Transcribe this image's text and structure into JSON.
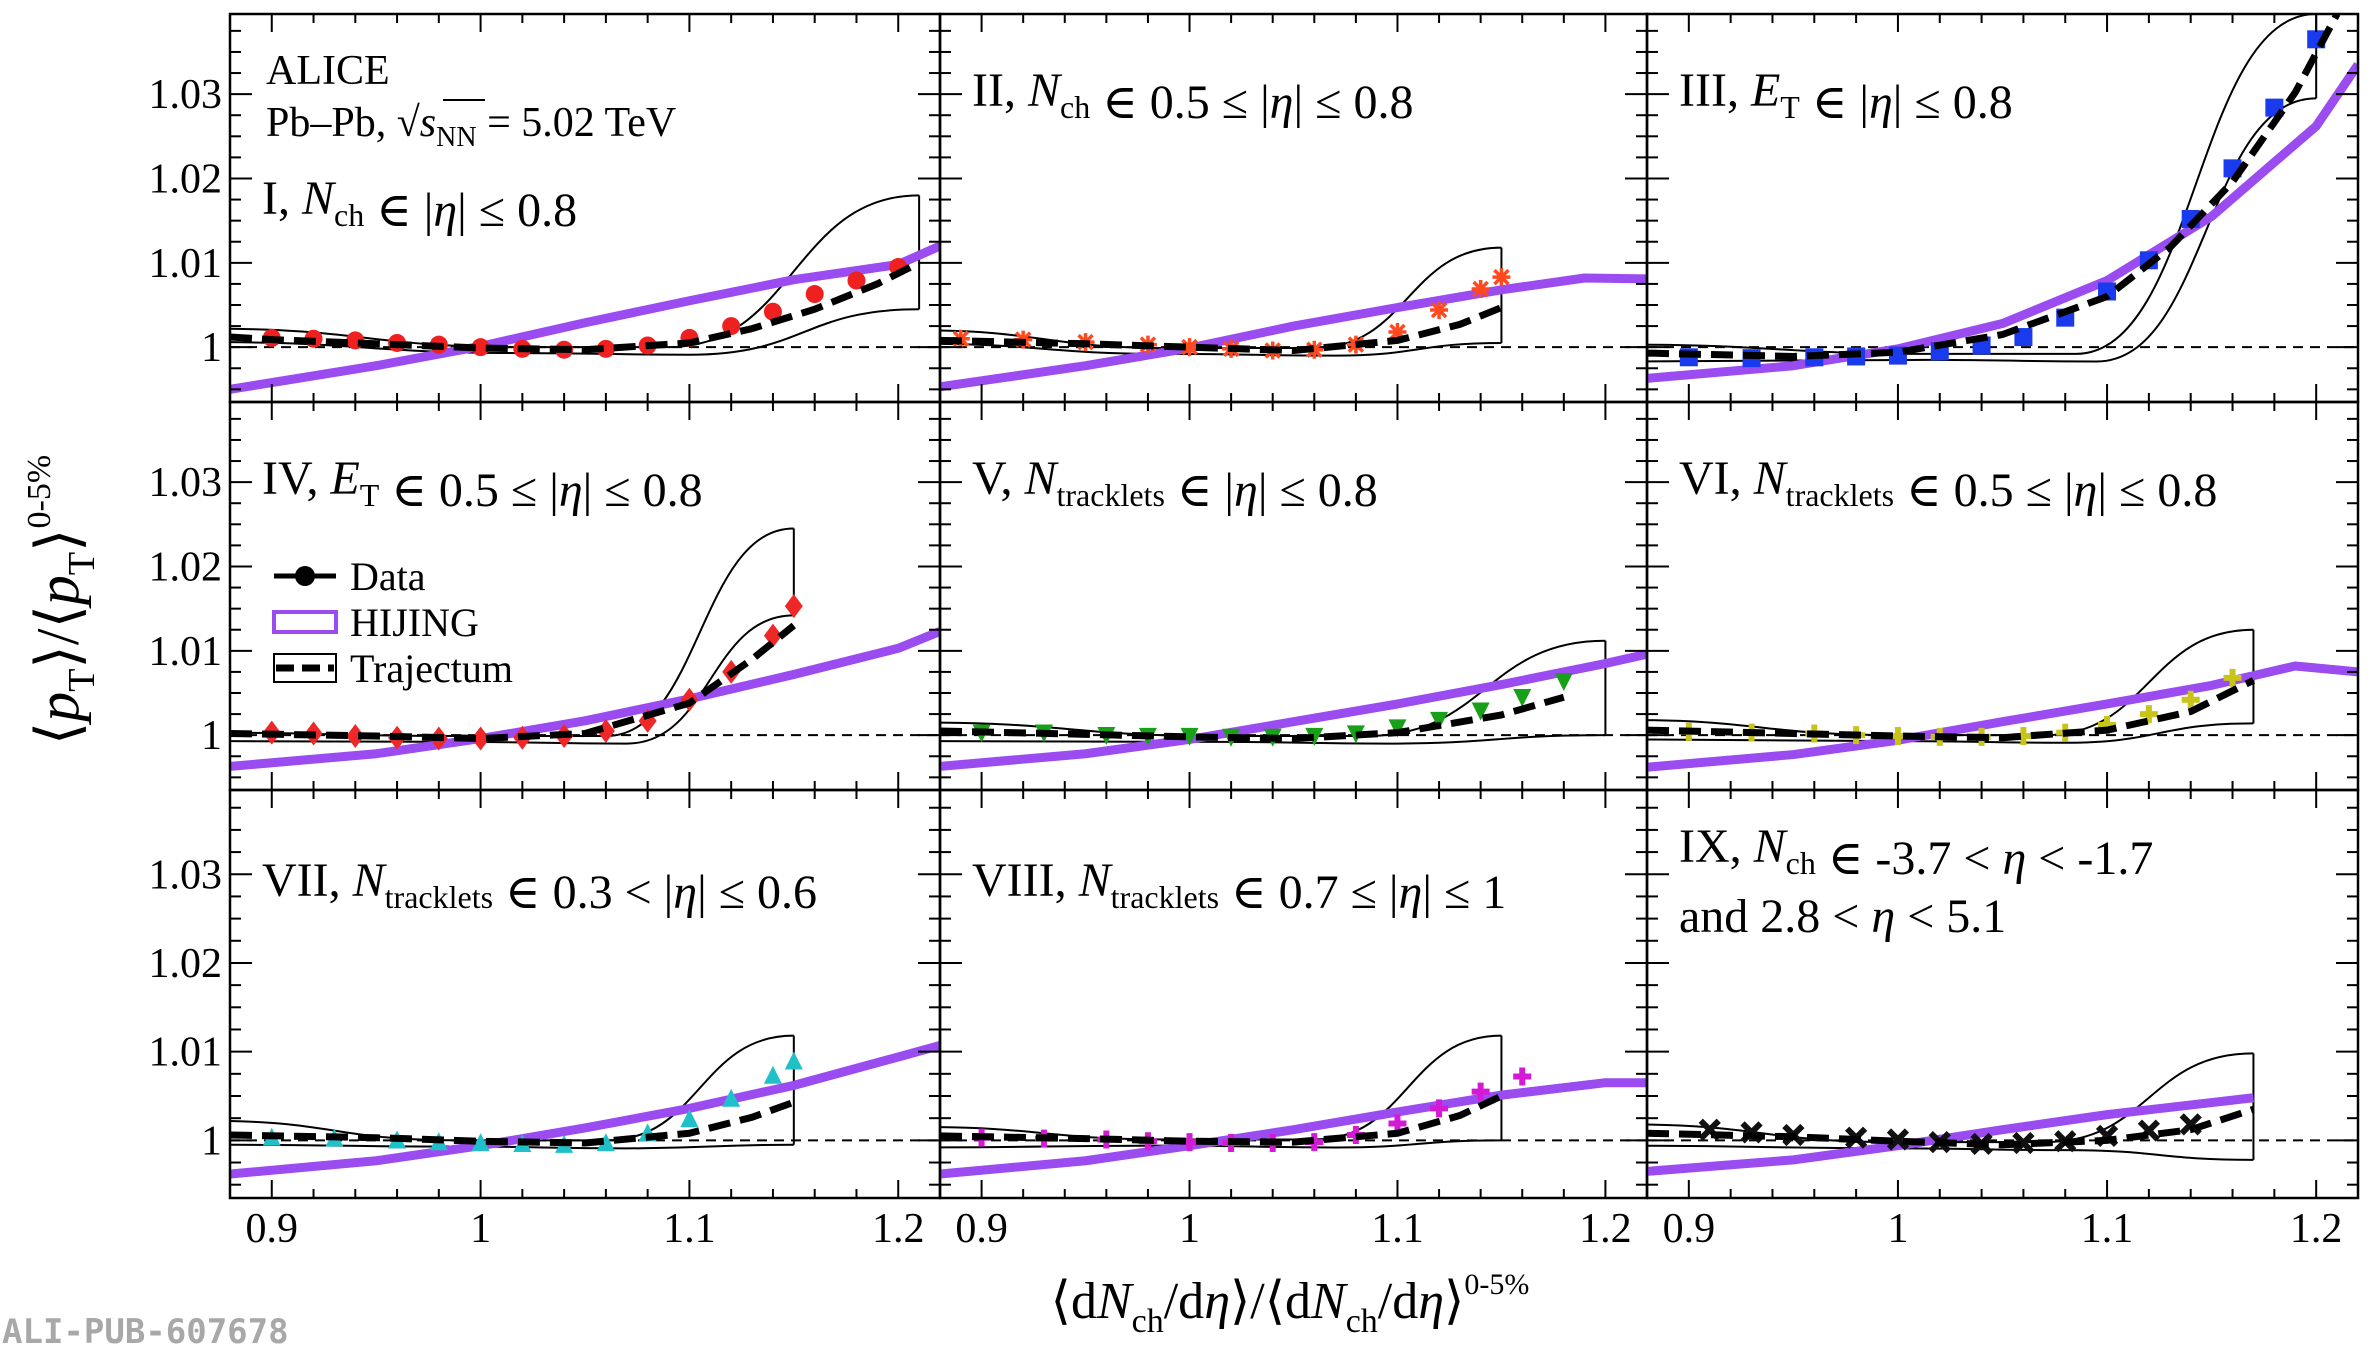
{
  "figure": {
    "footer": "ALI-PUB-607678",
    "header_lines": [
      "ALICE",
      "Pb–Pb, √s",
      "NN",
      "= 5.02 TeV"
    ],
    "xlabel": "⟨dN_ch/dη⟩/⟨dN_ch/dη⟩^0-5%",
    "ylabel": "⟨p_T⟩/⟨p_T⟩^0-5%",
    "xlim": [
      0.88,
      1.22
    ],
    "ylim": [
      0.9935,
      1.0395
    ],
    "x_ticks": [
      "0.9",
      "1",
      "1.1",
      "1.2"
    ],
    "y_ticks": [
      "1",
      "1.01",
      "1.02",
      "1.03"
    ],
    "legend": [
      {
        "label": "Data",
        "style": "line-marker",
        "color": "#000000"
      },
      {
        "label": "HIJING",
        "style": "band",
        "color": "#9a4cf0"
      },
      {
        "label": "Trajectum",
        "style": "dashed",
        "color": "#000000"
      }
    ],
    "hijing_color": "#9a4cf0"
  },
  "chart_data": [
    {
      "type": "scatter",
      "panel": "I",
      "label": "I, N_ch ∈ |η| ≤ 0.8",
      "color": "#ee2020",
      "marker": "circle",
      "data_x": [
        0.9,
        0.92,
        0.94,
        0.96,
        0.98,
        1.0,
        1.02,
        1.04,
        1.06,
        1.08,
        1.1,
        1.12,
        1.14,
        1.16,
        1.18,
        1.2
      ],
      "data_y": [
        1.0011,
        1.001,
        1.0008,
        1.0005,
        1.0003,
        1.0,
        0.9998,
        0.9997,
        0.9998,
        1.0002,
        1.0011,
        1.0025,
        1.0042,
        1.0063,
        1.0079,
        1.0095
      ],
      "hijing_x": [
        0.88,
        0.95,
        1.0,
        1.05,
        1.1,
        1.15,
        1.2,
        1.22
      ],
      "hijing_y": [
        0.995,
        0.9978,
        1.0001,
        1.0029,
        1.0055,
        1.008,
        1.0098,
        1.012
      ],
      "traj_x": [
        0.88,
        0.9,
        0.95,
        1.0,
        1.05,
        1.1,
        1.13,
        1.16,
        1.19,
        1.21
      ],
      "traj_y": [
        1.0012,
        1.0009,
        1.0004,
        0.9999,
        0.9997,
        1.0005,
        1.0022,
        1.0045,
        1.0075,
        1.01
      ],
      "band_x_end": 1.21,
      "band_top_end": 1.018,
      "band_bot_end": 1.0045,
      "band_top_start": 1.0022,
      "band_bot_start": 1.0006
    },
    {
      "type": "scatter",
      "panel": "II",
      "label": "II, N_ch ∈ 0.5 ≤ |η| ≤ 0.8",
      "color": "#ff4a20",
      "marker": "star",
      "data_x": [
        0.89,
        0.92,
        0.95,
        0.98,
        1.0,
        1.02,
        1.04,
        1.06,
        1.08,
        1.1,
        1.12,
        1.14,
        1.15
      ],
      "data_y": [
        1.001,
        1.0009,
        1.0006,
        1.0003,
        1.0,
        0.9998,
        0.9996,
        0.9997,
        1.0003,
        1.0018,
        1.0044,
        1.0069,
        1.0083
      ],
      "hijing_x": [
        0.88,
        0.95,
        1.0,
        1.05,
        1.1,
        1.15,
        1.19,
        1.22
      ],
      "hijing_y": [
        0.9953,
        0.9978,
        0.9999,
        1.0025,
        1.0047,
        1.0068,
        1.0082,
        1.0081
      ],
      "traj_x": [
        0.88,
        0.95,
        1.0,
        1.05,
        1.1,
        1.13,
        1.15
      ],
      "traj_y": [
        1.0008,
        1.0004,
        1.0,
        0.9996,
        1.0008,
        1.0027,
        1.0047
      ],
      "band_x_end": 1.15,
      "band_top_end": 1.0118,
      "band_bot_end": 1.0005,
      "band_top_start": 1.002,
      "band_bot_start": 1.0004
    },
    {
      "type": "scatter",
      "panel": "III",
      "label": "III, E_T ∈ |η| ≤ 0.8",
      "color": "#1a3aee",
      "marker": "square",
      "data_x": [
        0.9,
        0.93,
        0.96,
        0.98,
        1.0,
        1.02,
        1.04,
        1.06,
        1.08,
        1.1,
        1.12,
        1.14,
        1.16,
        1.18,
        1.2
      ],
      "data_y": [
        0.9988,
        0.9987,
        0.9988,
        0.9989,
        0.999,
        0.9995,
        1.0002,
        1.0012,
        1.0035,
        1.0066,
        1.0103,
        1.0152,
        1.0212,
        1.0284,
        1.0365
      ],
      "hijing_x": [
        0.88,
        0.95,
        1.0,
        1.05,
        1.1,
        1.15,
        1.2,
        1.22
      ],
      "hijing_y": [
        0.9963,
        0.9978,
        0.9998,
        1.0028,
        1.0079,
        1.0155,
        1.0262,
        1.0335
      ],
      "traj_x": [
        0.88,
        0.95,
        1.0,
        1.05,
        1.1,
        1.13,
        1.16,
        1.19,
        1.21
      ],
      "traj_y": [
        0.9993,
        0.9989,
        0.9994,
        1.0015,
        1.006,
        1.0118,
        1.0196,
        1.0302,
        1.0395
      ],
      "band_x_end": 1.2,
      "band_top_end": 1.0395,
      "band_bot_end": 1.0295,
      "band_top_start": 1.0003,
      "band_bot_start": 0.9983
    },
    {
      "type": "scatter",
      "panel": "IV",
      "label": "IV, E_T ∈ 0.5 ≤ |η| ≤ 0.8",
      "color": "#ee2828",
      "marker": "diamond",
      "data_x": [
        0.9,
        0.92,
        0.94,
        0.96,
        0.98,
        1.0,
        1.02,
        1.04,
        1.06,
        1.08,
        1.1,
        1.12,
        1.14,
        1.15
      ],
      "data_y": [
        1.0003,
        1.0002,
        0.9999,
        0.9997,
        0.9996,
        0.9996,
        0.9997,
        0.9999,
        1.0005,
        1.0017,
        1.0042,
        1.0075,
        1.0118,
        1.0153
      ],
      "hijing_x": [
        0.88,
        0.95,
        1.0,
        1.05,
        1.1,
        1.15,
        1.2,
        1.22
      ],
      "hijing_y": [
        0.9963,
        0.9978,
        0.9996,
        1.0017,
        1.0043,
        1.0072,
        1.0103,
        1.0123
      ],
      "traj_x": [
        0.88,
        0.95,
        1.0,
        1.05,
        1.1,
        1.13,
        1.15
      ],
      "traj_y": [
        1.0002,
        0.9999,
        0.9996,
        1.0002,
        1.0038,
        1.009,
        1.013
      ],
      "band_x_end": 1.15,
      "band_top_end": 1.0245,
      "band_bot_end": 1.0142,
      "band_top_start": 1.0003,
      "band_bot_start": 0.9993
    },
    {
      "type": "scatter",
      "panel": "V",
      "label": "V, N_tracklets ∈ |η| ≤ 0.8",
      "color": "#18a018",
      "marker": "triangle-down",
      "data_x": [
        0.9,
        0.93,
        0.96,
        0.98,
        1.0,
        1.02,
        1.04,
        1.06,
        1.08,
        1.1,
        1.12,
        1.14,
        1.16,
        1.18
      ],
      "data_y": [
        1.0002,
        1.0002,
        0.9999,
        0.9998,
        0.9998,
        0.9997,
        0.9997,
        0.9998,
        1.0001,
        1.0008,
        1.0017,
        1.0028,
        1.0044,
        1.0063
      ],
      "hijing_x": [
        0.88,
        0.95,
        1.0,
        1.05,
        1.1,
        1.15,
        1.2,
        1.22
      ],
      "hijing_y": [
        0.9963,
        0.9978,
        0.9995,
        1.0016,
        1.0037,
        1.006,
        1.0085,
        1.0096
      ],
      "traj_x": [
        0.88,
        0.95,
        1.0,
        1.05,
        1.1,
        1.15,
        1.18
      ],
      "traj_y": [
        1.0005,
        1.0001,
        0.9998,
        0.9996,
        1.0003,
        1.0024,
        1.0045
      ],
      "band_x_end": 1.2,
      "band_top_end": 1.0112,
      "band_bot_end": 1.0,
      "band_top_start": 1.0015,
      "band_bot_start": 0.9993
    },
    {
      "type": "scatter",
      "panel": "VI",
      "label": "VI, N_tracklets ∈ 0.5 ≤ |η| ≤ 0.8",
      "color": "#c8c41a",
      "marker": "plus",
      "data_x": [
        0.9,
        0.93,
        0.96,
        0.98,
        1.0,
        1.02,
        1.04,
        1.06,
        1.08,
        1.1,
        1.12,
        1.14,
        1.16
      ],
      "data_y": [
        1.0004,
        1.0003,
        1.0002,
        1.0,
        0.9999,
        0.9998,
        0.9998,
        0.9999,
        1.0003,
        1.0012,
        1.0025,
        1.0042,
        1.0068
      ],
      "hijing_x": [
        0.88,
        0.95,
        1.0,
        1.05,
        1.1,
        1.15,
        1.19,
        1.22
      ],
      "hijing_y": [
        0.9962,
        0.9977,
        0.9994,
        1.0016,
        1.0037,
        1.0059,
        1.0082,
        1.0075
      ],
      "traj_x": [
        0.88,
        0.95,
        1.0,
        1.05,
        1.1,
        1.14,
        1.17
      ],
      "traj_y": [
        1.0006,
        1.0002,
        0.9999,
        0.9997,
        1.0006,
        1.0028,
        1.0065
      ],
      "band_x_end": 1.17,
      "band_top_end": 1.0125,
      "band_bot_end": 1.0014,
      "band_top_start": 1.0018,
      "band_bot_start": 0.9995
    },
    {
      "type": "scatter",
      "panel": "VII",
      "label": "VII, N_tracklets ∈ 0.3 < |η| ≤ 0.6",
      "color": "#20c0c8",
      "marker": "triangle-up",
      "data_x": [
        0.9,
        0.93,
        0.96,
        0.98,
        1.0,
        1.02,
        1.04,
        1.06,
        1.08,
        1.1,
        1.12,
        1.14,
        1.15
      ],
      "data_y": [
        1.0004,
        1.0003,
        1.0001,
        0.9999,
        0.9998,
        0.9997,
        0.9996,
        0.9998,
        1.0009,
        1.0025,
        1.0048,
        1.0074,
        1.009
      ],
      "hijing_x": [
        0.88,
        0.95,
        1.0,
        1.05,
        1.1,
        1.15,
        1.2,
        1.22
      ],
      "hijing_y": [
        0.9962,
        0.9977,
        0.9994,
        1.0014,
        1.0036,
        1.0062,
        1.0094,
        1.0107
      ],
      "traj_x": [
        0.88,
        0.95,
        1.0,
        1.05,
        1.1,
        1.13,
        1.15
      ],
      "traj_y": [
        1.0006,
        1.0003,
        0.9999,
        0.9997,
        1.0008,
        1.0026,
        1.0043
      ],
      "band_x_end": 1.15,
      "band_top_end": 1.0118,
      "band_bot_end": 0.9995,
      "band_top_start": 1.0022,
      "band_bot_start": 0.9995
    },
    {
      "type": "scatter",
      "panel": "VIII",
      "label": "VIII, N_tracklets ∈ 0.7 ≤ |η| ≤ 1",
      "color": "#d41ad4",
      "marker": "plus",
      "data_x": [
        0.9,
        0.93,
        0.96,
        0.98,
        1.0,
        1.02,
        1.04,
        1.06,
        1.08,
        1.1,
        1.12,
        1.14,
        1.16
      ],
      "data_y": [
        1.0003,
        1.0002,
        1.0001,
        0.9999,
        0.9998,
        0.9997,
        0.9997,
        0.9998,
        1.0006,
        1.0019,
        1.0036,
        1.0055,
        1.0072
      ],
      "hijing_x": [
        0.88,
        0.95,
        1.0,
        1.05,
        1.1,
        1.15,
        1.2,
        1.22
      ],
      "hijing_y": [
        0.9962,
        0.9977,
        0.9994,
        1.0012,
        1.0032,
        1.0051,
        1.0065,
        1.0065
      ],
      "traj_x": [
        0.88,
        0.95,
        1.0,
        1.05,
        1.1,
        1.13,
        1.15
      ],
      "traj_y": [
        1.0005,
        1.0002,
        0.9999,
        0.9998,
        1.0008,
        1.0028,
        1.005
      ],
      "band_x_end": 1.15,
      "band_top_end": 1.0118,
      "band_bot_end": 1.0,
      "band_top_start": 1.0015,
      "band_bot_start": 0.9992
    },
    {
      "type": "scatter",
      "panel": "IX",
      "label_lines": [
        "IX, N_ch ∈ -3.7 < η < -1.7",
        "and 2.8 < η < 5.1"
      ],
      "color": "#111111",
      "marker": "cross",
      "data_x": [
        0.91,
        0.93,
        0.95,
        0.98,
        1.0,
        1.02,
        1.04,
        1.06,
        1.08,
        1.1,
        1.12,
        1.14
      ],
      "data_y": [
        1.0012,
        1.0009,
        1.0006,
        1.0003,
        1.0001,
        0.9998,
        0.9996,
        0.9997,
        0.9999,
        1.0005,
        1.0011,
        1.0018
      ],
      "hijing_x": [
        0.88,
        0.95,
        1.0,
        1.05,
        1.1,
        1.17
      ],
      "hijing_y": [
        0.9965,
        0.9978,
        0.9994,
        1.0012,
        1.0029,
        1.0048
      ],
      "traj_x": [
        0.88,
        0.95,
        1.0,
        1.05,
        1.1,
        1.14,
        1.17
      ],
      "traj_y": [
        1.0008,
        1.0004,
        0.9999,
        0.9995,
        1.0,
        1.0012,
        1.0035
      ],
      "band_x_end": 1.17,
      "band_top_end": 1.0098,
      "band_bot_end": 0.9978,
      "band_top_start": 1.0018,
      "band_bot_start": 0.9994
    }
  ]
}
